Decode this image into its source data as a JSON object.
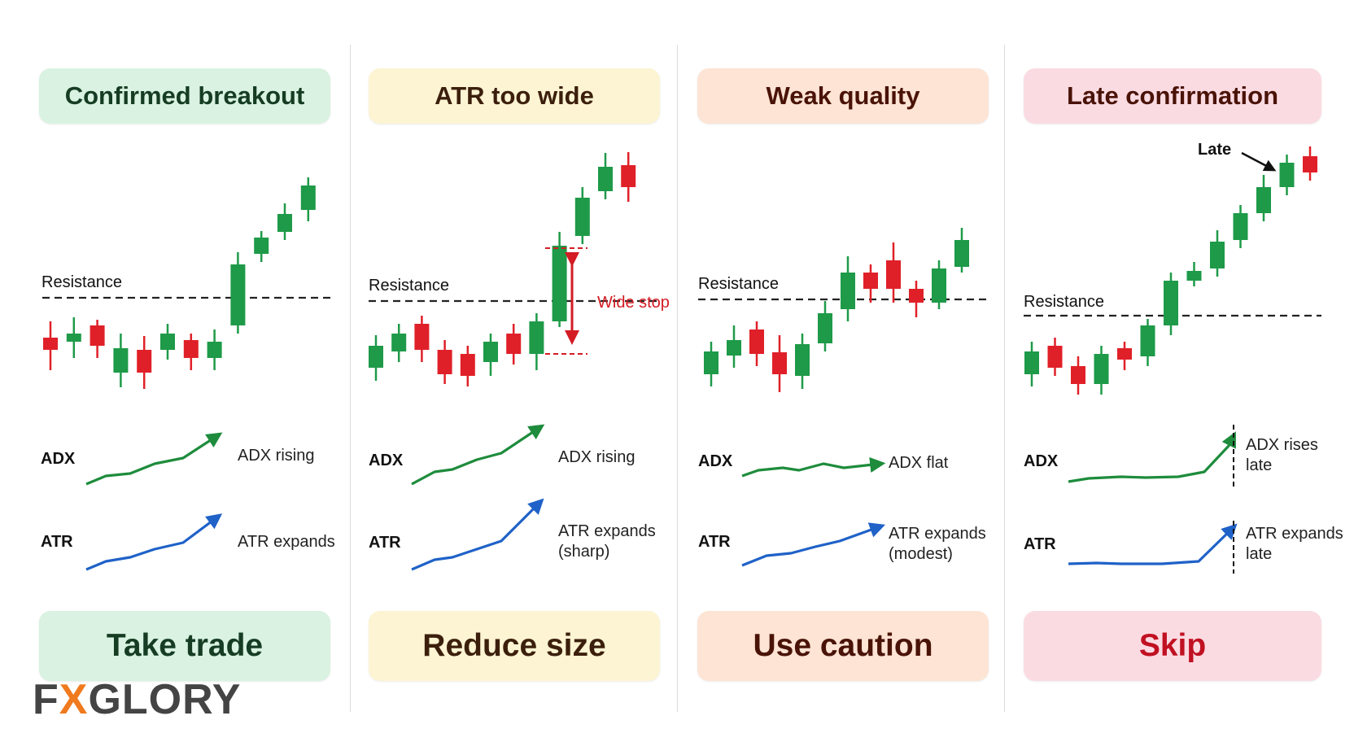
{
  "colors": {
    "bull": "#1e9a48",
    "bear": "#e02028",
    "adx_line": "#1e8c3c",
    "atr_line": "#1f62c8",
    "wide_stop": "#d31c24",
    "divider": "#dcdcdc",
    "logo": "#444444",
    "logo_accent": "#f07a1e"
  },
  "brand": {
    "logo_prefix": "FX",
    "logo_suffix": "GLORY"
  },
  "indicator_labels": {
    "adx": "ADX",
    "atr": "ATR"
  },
  "panels": [
    {
      "title": "Confirmed breakout",
      "verdict": "Take trade",
      "banner_bg": "#d9f2e1",
      "text_color": "#163d24",
      "resistance_label": "Resistance",
      "adx_note": [
        "ADX rising"
      ],
      "atr_note": [
        "ATR expands"
      ],
      "candles": [
        [
          0,
          430,
          415,
          395,
          455
        ],
        [
          1,
          410,
          420,
          390,
          440
        ],
        [
          0,
          400,
          425,
          393,
          440
        ],
        [
          1,
          428,
          458,
          410,
          476
        ],
        [
          0,
          458,
          430,
          413,
          478
        ],
        [
          1,
          430,
          410,
          398,
          442
        ],
        [
          0,
          418,
          440,
          410,
          455
        ],
        [
          1,
          440,
          420,
          405,
          455
        ],
        [
          1,
          400,
          325,
          310,
          410
        ],
        [
          1,
          312,
          292,
          284,
          322
        ],
        [
          1,
          285,
          263,
          250,
          295
        ],
        [
          1,
          258,
          228,
          218,
          272
        ]
      ]
    },
    {
      "title": "ATR too wide",
      "verdict": "Reduce size",
      "banner_bg": "#fdf4d3",
      "text_color": "#3b1f0c",
      "resistance_label": "Resistance",
      "adx_note": [
        "ADX rising"
      ],
      "atr_note": [
        "ATR expands",
        "(sharp)"
      ],
      "wide_stop_label": "Wide stop",
      "candles": [
        [
          1,
          452,
          425,
          412,
          468
        ],
        [
          1,
          432,
          410,
          398,
          445
        ],
        [
          0,
          398,
          430,
          388,
          445
        ],
        [
          0,
          430,
          460,
          418,
          472
        ],
        [
          0,
          435,
          462,
          425,
          475
        ],
        [
          1,
          445,
          420,
          410,
          462
        ],
        [
          0,
          410,
          435,
          398,
          448
        ],
        [
          1,
          435,
          395,
          385,
          455
        ],
        [
          1,
          395,
          302,
          285,
          402
        ],
        [
          1,
          290,
          243,
          230,
          300
        ],
        [
          1,
          235,
          205,
          188,
          245
        ],
        [
          0,
          203,
          230,
          187,
          248
        ]
      ]
    },
    {
      "title": "Weak quality",
      "verdict": "Use caution",
      "banner_bg": "#fde4d4",
      "text_color": "#4a1308",
      "resistance_label": "Resistance",
      "adx_note": [
        "ADX flat"
      ],
      "atr_note": [
        "ATR expands",
        "(modest)"
      ],
      "candles": [
        [
          1,
          460,
          432,
          420,
          475
        ],
        [
          1,
          437,
          418,
          400,
          452
        ],
        [
          0,
          405,
          435,
          395,
          450
        ],
        [
          0,
          433,
          460,
          412,
          482
        ],
        [
          1,
          462,
          423,
          410,
          478
        ],
        [
          1,
          422,
          385,
          370,
          432
        ],
        [
          1,
          380,
          335,
          315,
          395
        ],
        [
          0,
          335,
          355,
          325,
          372
        ],
        [
          0,
          320,
          355,
          298,
          372
        ],
        [
          0,
          355,
          372,
          345,
          390
        ],
        [
          1,
          372,
          330,
          320,
          380
        ],
        [
          1,
          328,
          295,
          280,
          335
        ]
      ]
    },
    {
      "title": "Late confirmation",
      "verdict": "Skip",
      "banner_bg": "#fbdbe2",
      "text_color": "#c01122",
      "resistance_label": "Resistance",
      "adx_note": [
        "ADX rises",
        "late"
      ],
      "atr_note": [
        "ATR expands",
        "late"
      ],
      "late_label": "Late",
      "candles": [
        [
          1,
          460,
          432,
          420,
          475
        ],
        [
          0,
          425,
          452,
          415,
          462
        ],
        [
          0,
          450,
          472,
          438,
          485
        ],
        [
          1,
          472,
          435,
          425,
          485
        ],
        [
          0,
          428,
          442,
          420,
          455
        ],
        [
          1,
          438,
          400,
          392,
          450
        ],
        [
          1,
          400,
          345,
          335,
          412
        ],
        [
          1,
          345,
          333,
          322,
          352
        ],
        [
          1,
          330,
          297,
          283,
          340
        ],
        [
          1,
          295,
          262,
          252,
          305
        ],
        [
          1,
          262,
          230,
          215,
          272
        ],
        [
          1,
          230,
          200,
          190,
          240
        ],
        [
          0,
          192,
          212,
          180,
          222
        ]
      ]
    }
  ]
}
